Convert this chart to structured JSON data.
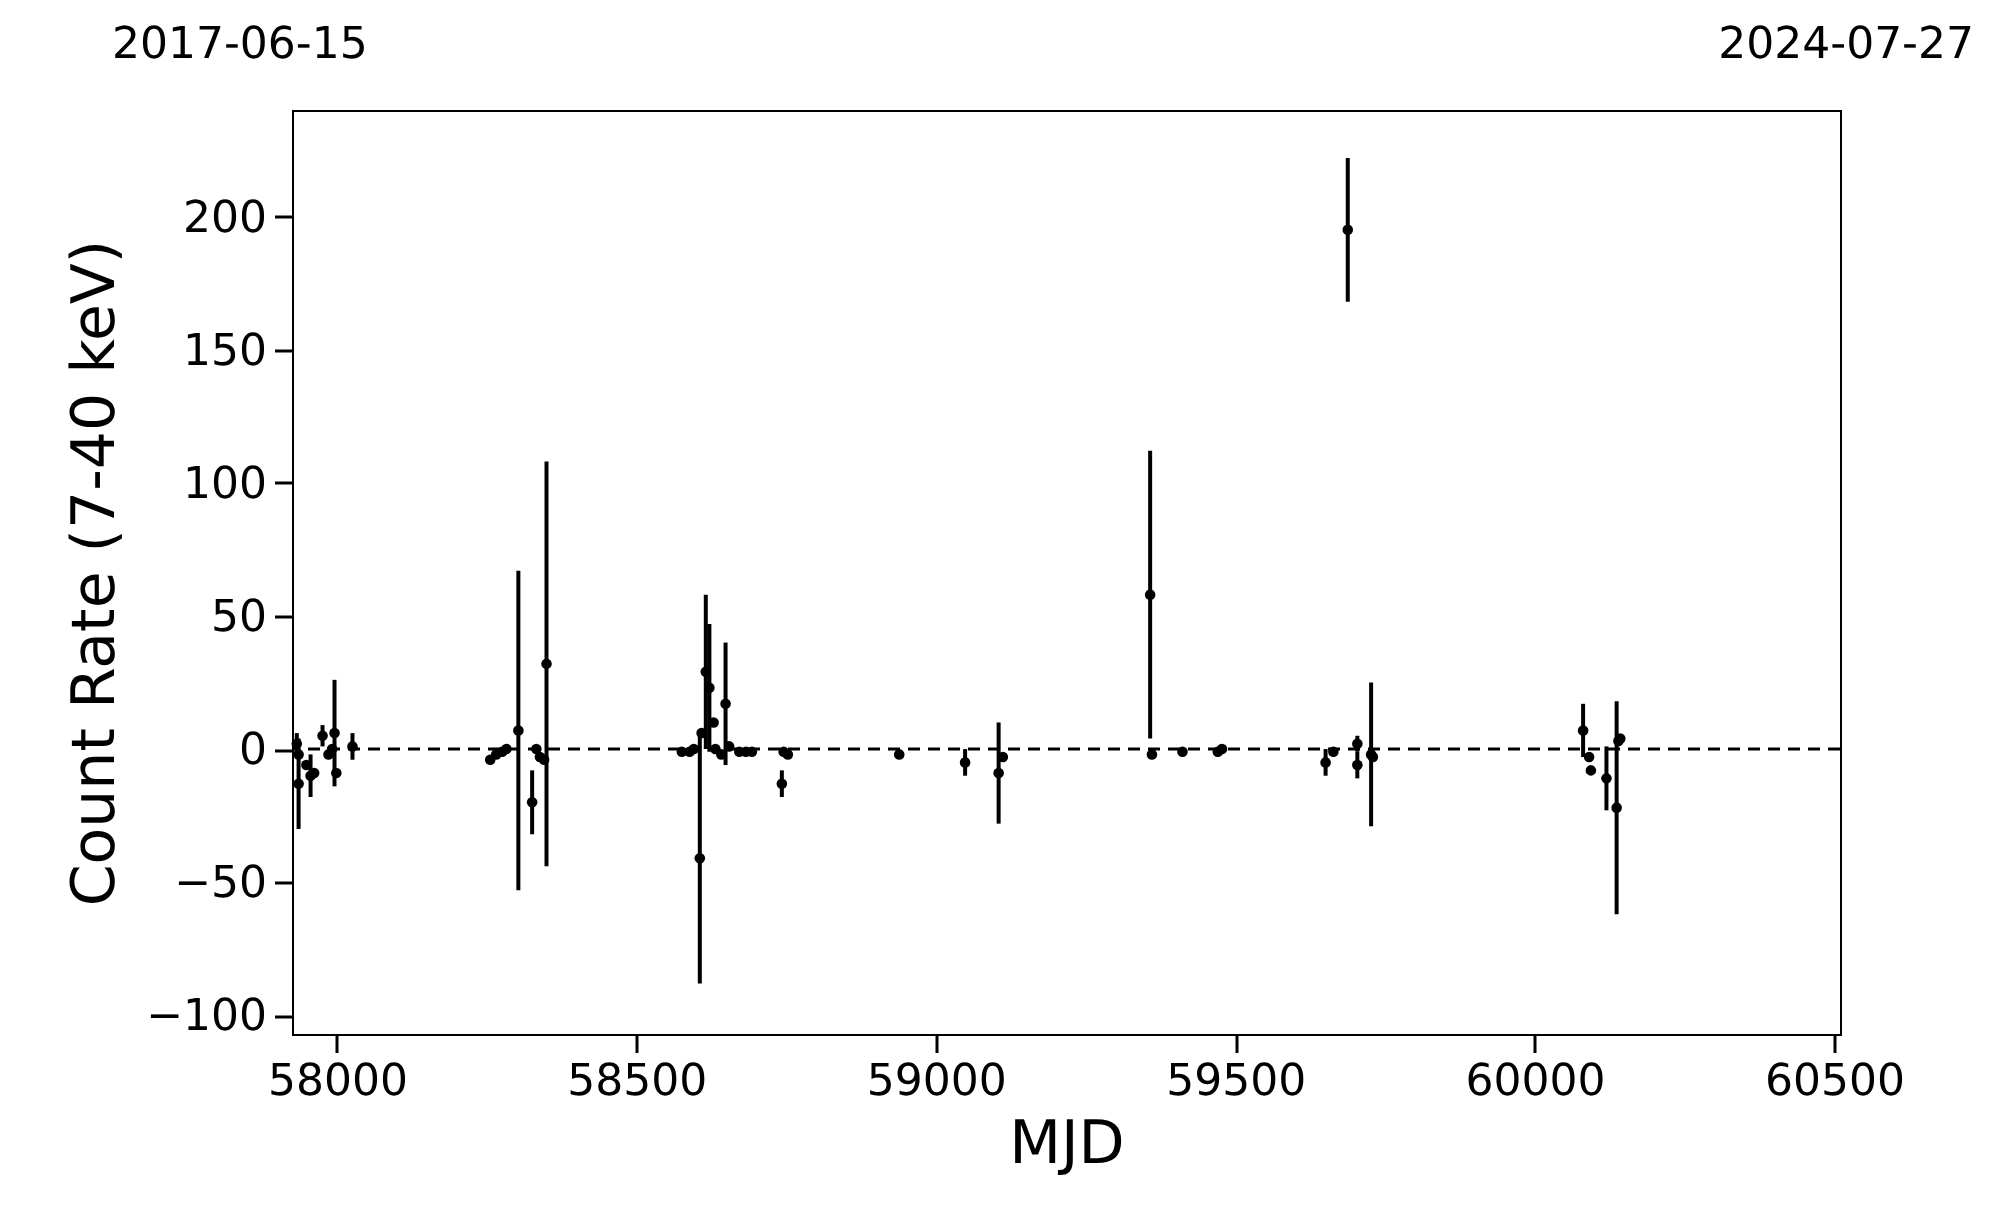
{
  "chart_data": {
    "type": "scatter",
    "xlabel": "MJD",
    "ylabel": "Count Rate (7-40 keV)",
    "annotations": [
      "2017-06-15",
      "2024-07-27"
    ],
    "xlim": [
      57925,
      60510
    ],
    "xticks": [
      58000,
      58500,
      59000,
      59500,
      60000,
      60500
    ],
    "ylim": [
      -107,
      240
    ],
    "yticks": [
      -100,
      -50,
      0,
      50,
      100,
      150,
      200
    ],
    "grid": false,
    "marker": "circle",
    "ref_lines": [
      {
        "axis": "y",
        "value": 0,
        "label": null,
        "color": "#000000",
        "line_style": "dashed"
      }
    ],
    "series": [
      {
        "color": "#000000",
        "x": [
          57933,
          57936,
          57936,
          57949,
          57956,
          57962,
          57976,
          57986,
          57992,
          57996,
          57999,
          58026,
          58256,
          58266,
          58276,
          58283,
          58303,
          58326,
          58333,
          58339,
          58346,
          58350,
          58576,
          58589,
          58596,
          58606,
          58609,
          58616,
          58622,
          58629,
          58632,
          58642,
          58649,
          58655,
          58672,
          58683,
          58693,
          58743,
          58746,
          58753,
          58939,
          59049,
          59105,
          59112,
          59358,
          59361,
          59412,
          59471,
          59478,
          59651,
          59664,
          59688,
          59704,
          59704,
          59727,
          59730,
          60081,
          60091,
          60094,
          60120,
          60137,
          60140,
          60143
        ],
        "values": [
          2,
          -2,
          -13,
          -6,
          -10,
          -9,
          5,
          -2,
          0,
          6,
          -9,
          1,
          -4,
          -2,
          -1,
          0,
          7,
          -20,
          0,
          -3,
          -4,
          32,
          -1,
          -1,
          0,
          -41,
          6,
          29,
          23,
          10,
          0,
          -2,
          17,
          1,
          -1,
          -1,
          -1,
          -13,
          -1,
          -2,
          -2,
          -5,
          -9,
          -3,
          58,
          -2,
          -1,
          -1,
          0,
          -5,
          -1,
          195,
          2,
          -6,
          -2,
          -3,
          7,
          -3,
          -8,
          -11,
          -22,
          3,
          4
        ],
        "errors": [
          4,
          null,
          17,
          null,
          8,
          null,
          4,
          null,
          null,
          20,
          null,
          5,
          null,
          null,
          null,
          null,
          60,
          12,
          null,
          null,
          null,
          76,
          null,
          null,
          null,
          47,
          null,
          29,
          24,
          null,
          null,
          null,
          23,
          null,
          null,
          null,
          null,
          5,
          null,
          null,
          null,
          5,
          19,
          null,
          54,
          null,
          null,
          null,
          null,
          5,
          null,
          27,
          3,
          5,
          27,
          null,
          10,
          null,
          null,
          12,
          40,
          null,
          null
        ]
      }
    ]
  }
}
